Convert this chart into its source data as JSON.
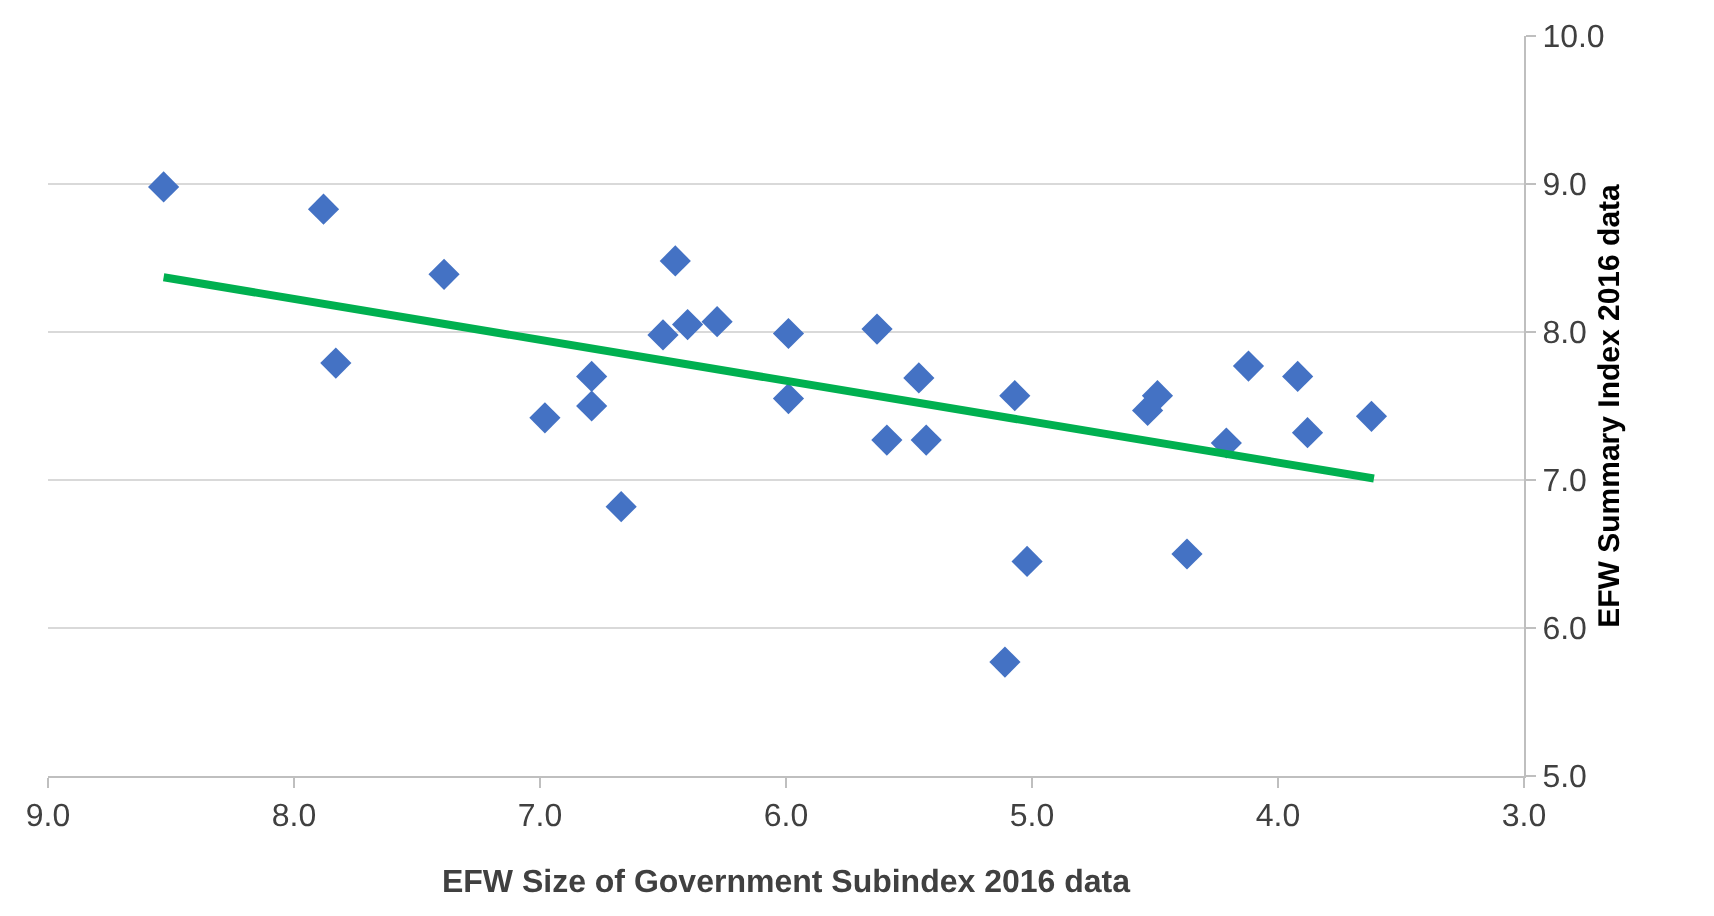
{
  "chart_data": {
    "type": "scatter",
    "xlabel": "EFW Size of Government Subindex 2016 data",
    "ylabel": "EFW Summary Index 2016 data",
    "xlim": [
      9,
      3
    ],
    "ylim": [
      5,
      10
    ],
    "xticks": [
      {
        "value": 9,
        "label": "9.0"
      },
      {
        "value": 8,
        "label": "8.0"
      },
      {
        "value": 7,
        "label": "7.0"
      },
      {
        "value": 6,
        "label": "6.0"
      },
      {
        "value": 5,
        "label": "5.0"
      },
      {
        "value": 4,
        "label": "4.0"
      },
      {
        "value": 3,
        "label": "3.0"
      }
    ],
    "yticks": [
      {
        "value": 5,
        "label": "5.0"
      },
      {
        "value": 6,
        "label": "6.0"
      },
      {
        "value": 7,
        "label": "7.0"
      },
      {
        "value": 8,
        "label": "8.0"
      },
      {
        "value": 9,
        "label": "9.0"
      },
      {
        "value": 10,
        "label": "10.0"
      }
    ],
    "grid": "y",
    "series": [
      {
        "marker": "diamond",
        "color": "#4472c4",
        "x": [
          8.53,
          7.88,
          7.83,
          7.39,
          6.98,
          6.79,
          6.79,
          6.67,
          6.5,
          6.45,
          6.4,
          6.28,
          5.99,
          5.99,
          5.63,
          5.59,
          5.46,
          5.43,
          5.11,
          5.07,
          5.02,
          4.53,
          4.49,
          4.37,
          4.21,
          4.12,
          3.92,
          3.88,
          3.62
        ],
        "values": [
          8.98,
          8.83,
          7.79,
          8.39,
          7.42,
          7.7,
          7.5,
          6.82,
          7.98,
          8.48,
          8.05,
          8.07,
          7.99,
          7.55,
          8.02,
          7.27,
          7.69,
          7.27,
          5.77,
          7.57,
          6.45,
          7.47,
          7.57,
          6.5,
          7.25,
          7.77,
          7.7,
          7.32,
          7.43
        ]
      },
      {
        "type": "line",
        "marker": "none",
        "color": "#00b050",
        "x": [
          8.53,
          3.61
        ],
        "values": [
          8.37,
          7.01
        ]
      }
    ]
  }
}
